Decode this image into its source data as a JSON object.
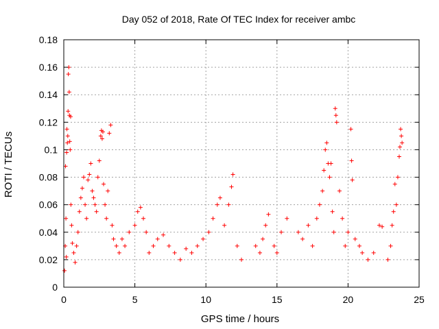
{
  "chart_data": {
    "type": "scatter",
    "title": "Day 052 of 2018, Rate Of TEC Index for receiver ambc",
    "xlabel": "GPS time / hours",
    "ylabel": "ROTI / TECUs",
    "xlim": [
      0,
      25
    ],
    "ylim": [
      0,
      0.18
    ],
    "xticks": [
      "0",
      "5",
      "10",
      "15",
      "20",
      "25"
    ],
    "yticks": [
      "0",
      "0.02",
      "0.04",
      "0.06",
      "0.08",
      "0.1",
      "0.12",
      "0.14",
      "0.16",
      "0.18"
    ],
    "grid": true,
    "marker": "+",
    "color": "#ff0000",
    "series": [
      {
        "points": [
          [
            0.05,
            0.012
          ],
          [
            0.1,
            0.03
          ],
          [
            0.12,
            0.088
          ],
          [
            0.15,
            0.05
          ],
          [
            0.18,
            0.022
          ],
          [
            0.2,
            0.098
          ],
          [
            0.22,
            0.115
          ],
          [
            0.25,
            0.105
          ],
          [
            0.28,
            0.11
          ],
          [
            0.3,
            0.128
          ],
          [
            0.32,
            0.155
          ],
          [
            0.35,
            0.16
          ],
          [
            0.38,
            0.142
          ],
          [
            0.4,
            0.125
          ],
          [
            0.42,
            0.106
          ],
          [
            0.45,
            0.1
          ],
          [
            0.48,
            0.124
          ],
          [
            0.5,
            0.06
          ],
          [
            0.55,
            0.045
          ],
          [
            0.6,
            0.032
          ],
          [
            0.7,
            0.025
          ],
          [
            0.8,
            0.018
          ],
          [
            0.9,
            0.03
          ],
          [
            1.0,
            0.04
          ],
          [
            1.1,
            0.055
          ],
          [
            1.2,
            0.065
          ],
          [
            1.3,
            0.072
          ],
          [
            1.4,
            0.08
          ],
          [
            1.5,
            0.06
          ],
          [
            1.6,
            0.05
          ],
          [
            1.7,
            0.078
          ],
          [
            1.8,
            0.082
          ],
          [
            1.9,
            0.09
          ],
          [
            2.0,
            0.07
          ],
          [
            2.1,
            0.065
          ],
          [
            2.2,
            0.06
          ],
          [
            2.3,
            0.055
          ],
          [
            2.4,
            0.08
          ],
          [
            2.5,
            0.092
          ],
          [
            2.6,
            0.11
          ],
          [
            2.65,
            0.114
          ],
          [
            2.7,
            0.108
          ],
          [
            2.75,
            0.113
          ],
          [
            2.8,
            0.075
          ],
          [
            2.9,
            0.06
          ],
          [
            3.0,
            0.05
          ],
          [
            3.1,
            0.07
          ],
          [
            3.2,
            0.112
          ],
          [
            3.3,
            0.118
          ],
          [
            3.4,
            0.045
          ],
          [
            3.5,
            0.035
          ],
          [
            3.7,
            0.03
          ],
          [
            3.9,
            0.025
          ],
          [
            4.1,
            0.035
          ],
          [
            4.3,
            0.03
          ],
          [
            4.6,
            0.04
          ],
          [
            5.0,
            0.045
          ],
          [
            5.2,
            0.055
          ],
          [
            5.4,
            0.058
          ],
          [
            5.6,
            0.05
          ],
          [
            5.8,
            0.04
          ],
          [
            6.0,
            0.025
          ],
          [
            6.3,
            0.03
          ],
          [
            6.6,
            0.035
          ],
          [
            7.0,
            0.038
          ],
          [
            7.4,
            0.03
          ],
          [
            7.8,
            0.025
          ],
          [
            8.2,
            0.02
          ],
          [
            8.6,
            0.028
          ],
          [
            9.0,
            0.025
          ],
          [
            9.4,
            0.03
          ],
          [
            9.8,
            0.035
          ],
          [
            10.2,
            0.04
          ],
          [
            10.5,
            0.05
          ],
          [
            10.8,
            0.06
          ],
          [
            11.0,
            0.065
          ],
          [
            11.3,
            0.045
          ],
          [
            11.6,
            0.06
          ],
          [
            11.8,
            0.073
          ],
          [
            11.9,
            0.082
          ],
          [
            12.2,
            0.03
          ],
          [
            12.5,
            0.02
          ],
          [
            13.5,
            0.03
          ],
          [
            13.8,
            0.025
          ],
          [
            14.0,
            0.035
          ],
          [
            14.2,
            0.045
          ],
          [
            14.4,
            0.053
          ],
          [
            14.8,
            0.03
          ],
          [
            15.0,
            0.025
          ],
          [
            15.3,
            0.04
          ],
          [
            15.7,
            0.05
          ],
          [
            16.5,
            0.04
          ],
          [
            16.8,
            0.035
          ],
          [
            17.2,
            0.045
          ],
          [
            17.5,
            0.03
          ],
          [
            17.8,
            0.05
          ],
          [
            18.0,
            0.06
          ],
          [
            18.2,
            0.07
          ],
          [
            18.3,
            0.085
          ],
          [
            18.4,
            0.1
          ],
          [
            18.5,
            0.105
          ],
          [
            18.6,
            0.09
          ],
          [
            18.7,
            0.08
          ],
          [
            18.8,
            0.09
          ],
          [
            18.9,
            0.055
          ],
          [
            19.0,
            0.04
          ],
          [
            19.1,
            0.13
          ],
          [
            19.15,
            0.125
          ],
          [
            19.2,
            0.12
          ],
          [
            19.4,
            0.07
          ],
          [
            19.6,
            0.05
          ],
          [
            19.8,
            0.03
          ],
          [
            20.0,
            0.04
          ],
          [
            20.2,
            0.115
          ],
          [
            20.25,
            0.092
          ],
          [
            20.3,
            0.078
          ],
          [
            20.5,
            0.035
          ],
          [
            20.8,
            0.03
          ],
          [
            21.0,
            0.025
          ],
          [
            21.4,
            0.02
          ],
          [
            21.8,
            0.025
          ],
          [
            22.2,
            0.045
          ],
          [
            22.4,
            0.044
          ],
          [
            22.8,
            0.02
          ],
          [
            23.0,
            0.03
          ],
          [
            23.1,
            0.045
          ],
          [
            23.2,
            0.055
          ],
          [
            23.3,
            0.075
          ],
          [
            23.4,
            0.06
          ],
          [
            23.5,
            0.08
          ],
          [
            23.6,
            0.095
          ],
          [
            23.65,
            0.102
          ],
          [
            23.7,
            0.115
          ],
          [
            23.75,
            0.11
          ],
          [
            23.8,
            0.105
          ]
        ]
      }
    ]
  }
}
